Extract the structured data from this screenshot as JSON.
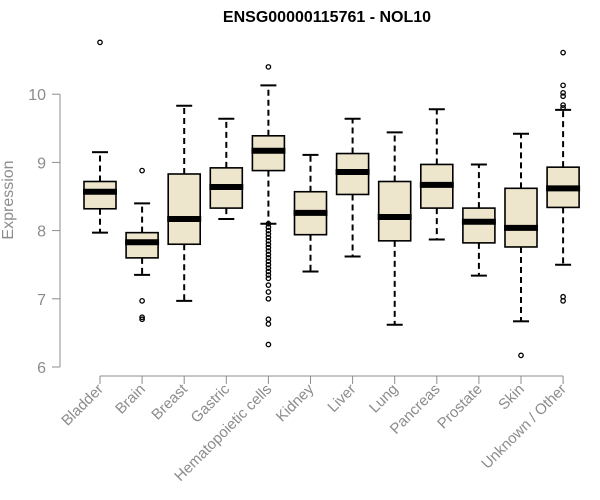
{
  "chart_data": {
    "type": "boxplot",
    "title": "ENSG00000115761 - NOL10",
    "ylabel": "Expression",
    "xlabel": "",
    "ylim": [
      6,
      10.9
    ],
    "yticks": [
      6,
      7,
      8,
      9,
      10
    ],
    "grid": false,
    "legend": "none",
    "colors": {
      "box_fill": "#ede6cd",
      "stroke": "#000000",
      "axis": "#8c8c8c"
    },
    "categories": [
      "Bladder",
      "Brain",
      "Breast",
      "Gastric",
      "Hematopoietic cells",
      "Kidney",
      "Liver",
      "Lung",
      "Pancreas",
      "Prostate",
      "Skin",
      "Unknown / Other"
    ],
    "boxes": [
      {
        "q1": 8.32,
        "median": 8.57,
        "q3": 8.72,
        "whisker_low": 7.97,
        "whisker_high": 9.15,
        "outliers": [
          10.76
        ]
      },
      {
        "q1": 7.6,
        "median": 7.83,
        "q3": 7.97,
        "whisker_low": 7.35,
        "whisker_high": 8.4,
        "outliers": [
          8.88,
          6.97,
          6.73,
          6.7
        ]
      },
      {
        "q1": 7.8,
        "median": 8.17,
        "q3": 8.83,
        "whisker_low": 6.97,
        "whisker_high": 9.83,
        "outliers": []
      },
      {
        "q1": 8.33,
        "median": 8.64,
        "q3": 8.92,
        "whisker_low": 8.17,
        "whisker_high": 9.64,
        "outliers": []
      },
      {
        "q1": 8.88,
        "median": 9.17,
        "q3": 9.39,
        "whisker_low": 8.1,
        "whisker_high": 10.13,
        "outliers": [
          10.4,
          8.1,
          8.05,
          8.0,
          7.95,
          7.9,
          7.85,
          7.8,
          7.75,
          7.7,
          7.65,
          7.6,
          7.55,
          7.5,
          7.45,
          7.4,
          7.35,
          7.3,
          7.2,
          7.1,
          7.0,
          6.7,
          6.63,
          6.33
        ]
      },
      {
        "q1": 7.94,
        "median": 8.26,
        "q3": 8.57,
        "whisker_low": 7.4,
        "whisker_high": 9.11,
        "outliers": []
      },
      {
        "q1": 8.53,
        "median": 8.86,
        "q3": 9.13,
        "whisker_low": 7.62,
        "whisker_high": 9.64,
        "outliers": []
      },
      {
        "q1": 7.85,
        "median": 8.2,
        "q3": 8.72,
        "whisker_low": 6.62,
        "whisker_high": 9.44,
        "outliers": []
      },
      {
        "q1": 8.33,
        "median": 8.67,
        "q3": 8.97,
        "whisker_low": 7.87,
        "whisker_high": 9.78,
        "outliers": []
      },
      {
        "q1": 7.82,
        "median": 8.13,
        "q3": 8.33,
        "whisker_low": 7.34,
        "whisker_high": 8.97,
        "outliers": []
      },
      {
        "q1": 7.76,
        "median": 8.04,
        "q3": 8.62,
        "whisker_low": 6.67,
        "whisker_high": 9.42,
        "outliers": [
          6.17
        ]
      },
      {
        "q1": 8.34,
        "median": 8.62,
        "q3": 8.93,
        "whisker_low": 7.5,
        "whisker_high": 9.77,
        "outliers": [
          10.61,
          10.13,
          10.02,
          9.97,
          9.84,
          9.8,
          7.03,
          6.97
        ]
      }
    ]
  }
}
